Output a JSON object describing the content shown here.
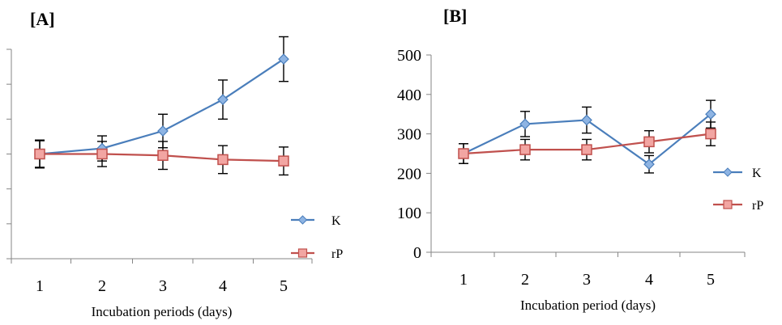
{
  "chart_data": [
    {
      "type": "line",
      "panel_label": "[A]",
      "title": "",
      "xlabel": "Incubation periods (days)",
      "ylabel": "",
      "categories": [
        "1",
        "2",
        "3",
        "4",
        "5"
      ],
      "ylim": [
        0,
        300
      ],
      "y_ticks_labeled": false,
      "grid": false,
      "legend_position": "bottom-right",
      "series": [
        {
          "name": "K",
          "color": "#4A7EBB",
          "marker": "diamond",
          "values": [
            150,
            158,
            183,
            228,
            286
          ],
          "errors": [
            19,
            18,
            24,
            28,
            32
          ]
        },
        {
          "name": "rP",
          "color": "#C0504D",
          "marker": "square",
          "values": [
            150,
            150,
            148,
            142,
            140
          ],
          "errors": [
            20,
            18,
            20,
            20,
            20
          ]
        }
      ]
    },
    {
      "type": "line",
      "panel_label": "[B]",
      "title": "",
      "xlabel": "Incubation period (days)",
      "ylabel": "",
      "categories": [
        "1",
        "2",
        "3",
        "4",
        "5"
      ],
      "ylim": [
        0,
        500
      ],
      "y_ticks": [
        "0",
        "100",
        "200",
        "300",
        "400",
        "500"
      ],
      "grid": false,
      "legend_position": "right",
      "series": [
        {
          "name": "K",
          "color": "#4A7EBB",
          "marker": "diamond",
          "values": [
            250,
            325,
            335,
            223,
            350
          ],
          "errors": [
            25,
            32,
            33,
            22,
            35
          ]
        },
        {
          "name": "rP",
          "color": "#C0504D",
          "marker": "square",
          "values": [
            250,
            260,
            260,
            280,
            300
          ],
          "errors": [
            25,
            26,
            26,
            28,
            30
          ]
        }
      ]
    }
  ]
}
